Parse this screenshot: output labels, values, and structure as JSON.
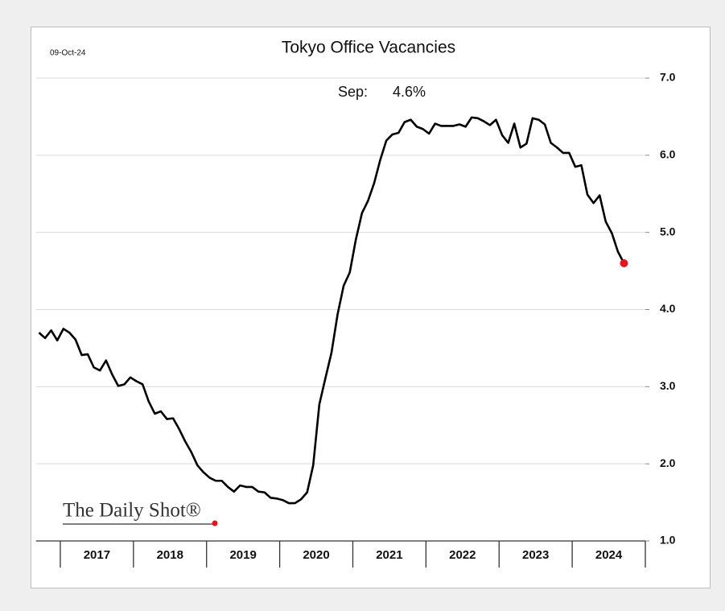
{
  "chart_data": {
    "type": "line",
    "title": "Tokyo Office Vacancies",
    "date": "09-Oct-24",
    "annotation": {
      "label": "Sep:",
      "value_label": "4.6%"
    },
    "source": "The Daily Shot®",
    "x": [
      2016.708,
      2016.792,
      2016.875,
      2016.958,
      2017.042,
      2017.125,
      2017.208,
      2017.292,
      2017.375,
      2017.458,
      2017.542,
      2017.625,
      2017.708,
      2017.792,
      2017.875,
      2017.958,
      2018.042,
      2018.125,
      2018.208,
      2018.292,
      2018.375,
      2018.458,
      2018.542,
      2018.625,
      2018.708,
      2018.792,
      2018.875,
      2018.958,
      2019.042,
      2019.125,
      2019.208,
      2019.292,
      2019.375,
      2019.458,
      2019.542,
      2019.625,
      2019.708,
      2019.792,
      2019.875,
      2019.958,
      2020.042,
      2020.125,
      2020.208,
      2020.292,
      2020.375,
      2020.458,
      2020.542,
      2020.625,
      2020.708,
      2020.792,
      2020.875,
      2020.958,
      2021.042,
      2021.125,
      2021.208,
      2021.292,
      2021.375,
      2021.458,
      2021.542,
      2021.625,
      2021.708,
      2021.792,
      2021.875,
      2021.958,
      2022.042,
      2022.125,
      2022.208,
      2022.292,
      2022.375,
      2022.458,
      2022.542,
      2022.625,
      2022.708,
      2022.792,
      2022.875,
      2022.958,
      2023.042,
      2023.125,
      2023.208,
      2023.292,
      2023.375,
      2023.458,
      2023.542,
      2023.625,
      2023.708,
      2023.792,
      2023.875,
      2023.958,
      2024.042,
      2024.125,
      2024.208,
      2024.292,
      2024.375,
      2024.458,
      2024.542,
      2024.625,
      2024.708
    ],
    "series": [
      {
        "color": "#000000",
        "marker_color": "#e8141b",
        "values": [
          3.7,
          3.63,
          3.73,
          3.6,
          3.75,
          3.7,
          3.61,
          3.41,
          3.42,
          3.25,
          3.21,
          3.34,
          3.16,
          3.01,
          3.03,
          3.12,
          3.07,
          3.03,
          2.81,
          2.65,
          2.68,
          2.58,
          2.59,
          2.45,
          2.29,
          2.15,
          1.98,
          1.89,
          1.82,
          1.78,
          1.78,
          1.7,
          1.64,
          1.72,
          1.7,
          1.7,
          1.64,
          1.63,
          1.56,
          1.55,
          1.53,
          1.49,
          1.49,
          1.54,
          1.63,
          1.98,
          2.77,
          3.11,
          3.44,
          3.94,
          4.31,
          4.48,
          4.91,
          5.25,
          5.41,
          5.64,
          5.94,
          6.19,
          6.27,
          6.29,
          6.43,
          6.46,
          6.37,
          6.34,
          6.28,
          6.41,
          6.38,
          6.38,
          6.38,
          6.4,
          6.37,
          6.49,
          6.48,
          6.44,
          6.39,
          6.46,
          6.26,
          6.16,
          6.41,
          6.1,
          6.15,
          6.48,
          6.46,
          6.4,
          6.16,
          6.1,
          6.03,
          6.03,
          5.85,
          5.87,
          5.49,
          5.38,
          5.48,
          5.14,
          4.99,
          4.75,
          4.6
        ]
      }
    ],
    "xlim": [
      2016.667,
      2025
    ],
    "xticks": [
      2017,
      2018,
      2019,
      2020,
      2021,
      2022,
      2023,
      2024,
      2025
    ],
    "xtick_labels": [
      {
        "value": 2017.5,
        "label": "2017"
      },
      {
        "value": 2018.5,
        "label": "2018"
      },
      {
        "value": 2019.5,
        "label": "2019"
      },
      {
        "value": 2020.5,
        "label": "2020"
      },
      {
        "value": 2021.5,
        "label": "2021"
      },
      {
        "value": 2022.5,
        "label": "2022"
      },
      {
        "value": 2023.5,
        "label": "2023"
      },
      {
        "value": 2024.5,
        "label": "2024"
      }
    ],
    "ylim": [
      1,
      7
    ],
    "yticks": [
      {
        "value": 1,
        "label": "1.0"
      },
      {
        "value": 2,
        "label": "2.0"
      },
      {
        "value": 3,
        "label": "3.0"
      },
      {
        "value": 4,
        "label": "4.0"
      },
      {
        "value": 5,
        "label": "5.0"
      },
      {
        "value": 6,
        "label": "6.0"
      },
      {
        "value": 7,
        "label": "7.0"
      }
    ],
    "grid": true
  }
}
